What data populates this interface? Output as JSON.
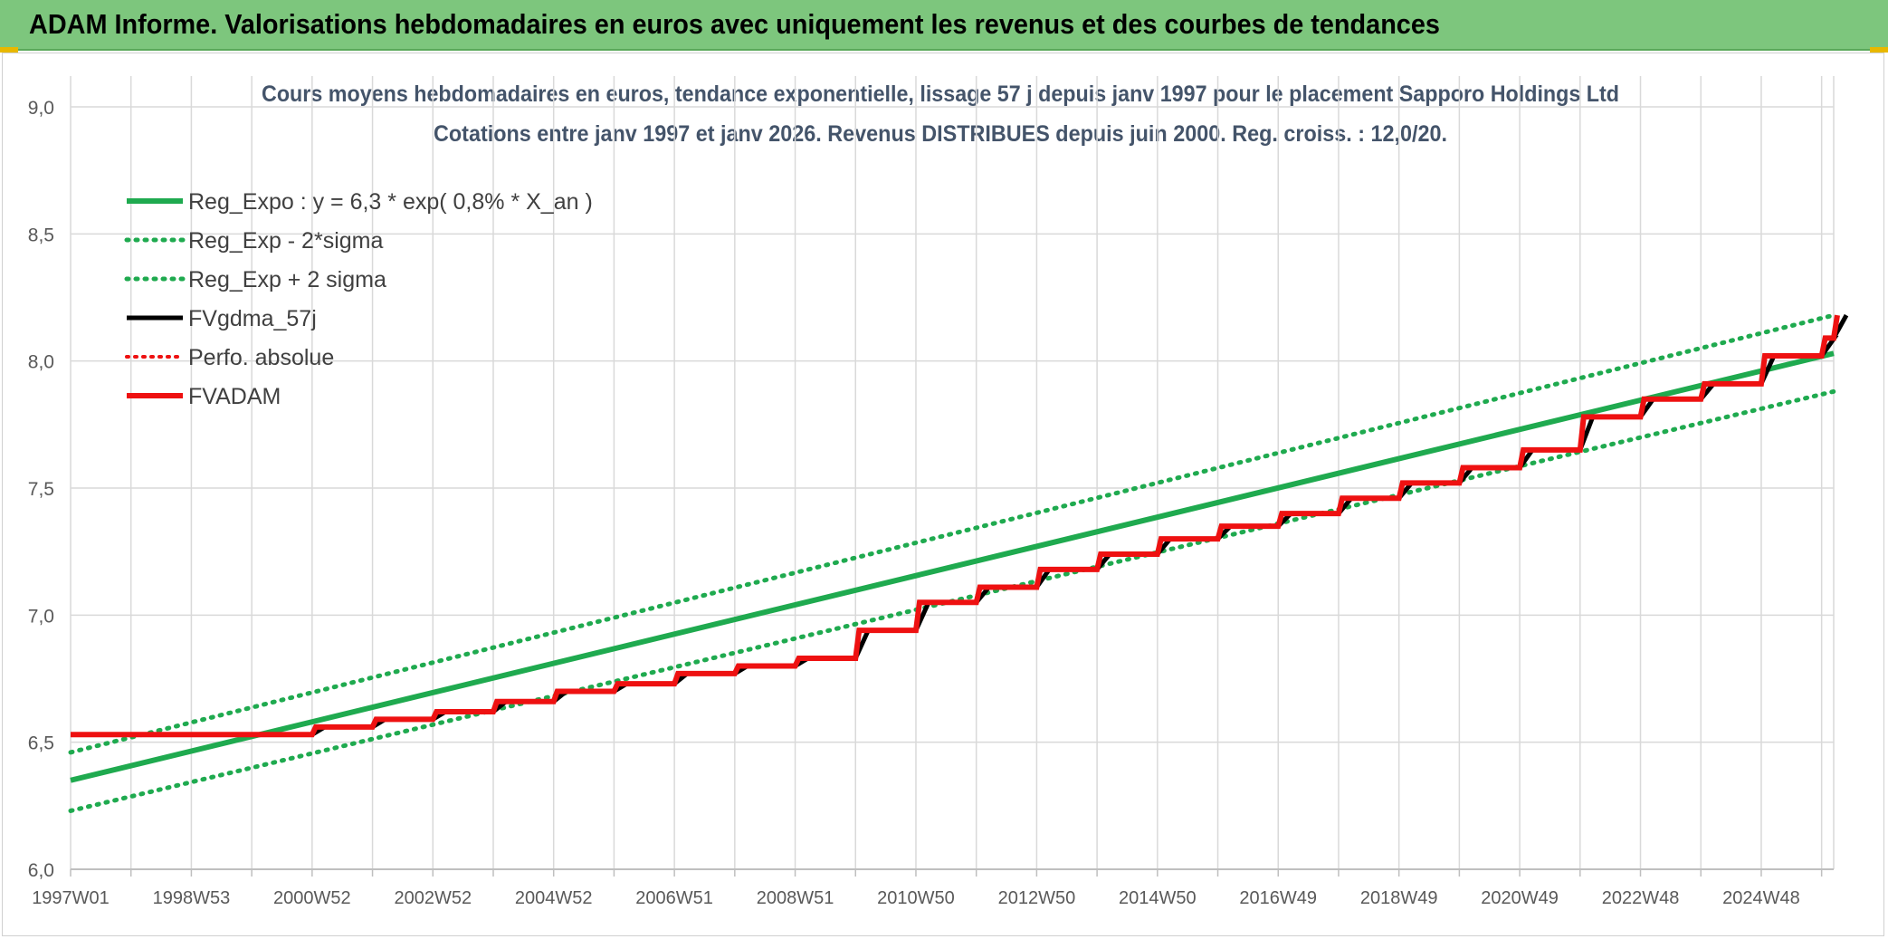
{
  "header": {
    "title": "ADAM Informe. Valorisations hebdomadaires en euros avec uniquement les revenus et des courbes de tendances"
  },
  "colors": {
    "header_bg": "#7dc67d",
    "green": "#1faa4f",
    "red": "#ee1111",
    "black": "#000000",
    "grid": "#d9d9d9"
  },
  "chart_data": {
    "type": "line",
    "title_line1": "Cours moyens hebdomadaires en euros, tendance exponentielle, lissage 57 j depuis janv 1997 pour le placement Sapporo Holdings Ltd",
    "title_line2": "Cotations entre janv 1997 et janv 2026. Revenus DISTRIBUES depuis juin 2000. Reg. croiss. : 12,0/20.",
    "xlabel": "",
    "ylabel": "",
    "ylim": [
      6.0,
      9.0
    ],
    "xlim": [
      1997.0,
      2026.2
    ],
    "y_ticks": [
      "6,0",
      "6,5",
      "7,0",
      "7,5",
      "8,0",
      "8,5",
      "9,0"
    ],
    "x_ticks": [
      {
        "label": "1997W01",
        "x": 1997.0
      },
      {
        "label": "1998W53",
        "x": 1999.0
      },
      {
        "label": "2000W52",
        "x": 2001.0
      },
      {
        "label": "2002W52",
        "x": 2003.0
      },
      {
        "label": "2004W52",
        "x": 2005.0
      },
      {
        "label": "2006W51",
        "x": 2007.0
      },
      {
        "label": "2008W51",
        "x": 2009.0
      },
      {
        "label": "2010W50",
        "x": 2011.0
      },
      {
        "label": "2012W50",
        "x": 2013.0
      },
      {
        "label": "2014W50",
        "x": 2015.0
      },
      {
        "label": "2016W49",
        "x": 2017.0
      },
      {
        "label": "2018W49",
        "x": 2019.0
      },
      {
        "label": "2020W49",
        "x": 2021.0
      },
      {
        "label": "2022W48",
        "x": 2023.0
      },
      {
        "label": "2024W48",
        "x": 2025.0
      }
    ],
    "grid": true,
    "legend_position": "top-left",
    "series": [
      {
        "name": "Reg_Expo : y = 6,3 * exp( 0,8% *  X_an )",
        "style": "solid-green",
        "x": [
          1997.0,
          2026.2
        ],
        "y": [
          6.35,
          8.03
        ]
      },
      {
        "name": "Reg_Exp - 2*sigma",
        "style": "dotted-green",
        "x": [
          1997.0,
          2026.2
        ],
        "y": [
          6.23,
          7.88
        ]
      },
      {
        "name": "Reg_Exp + 2 sigma",
        "style": "dotted-green",
        "x": [
          1997.0,
          2026.2
        ],
        "y": [
          6.46,
          8.18
        ]
      },
      {
        "name": "FVgdma_57j",
        "style": "solid-black",
        "x": [
          1997.0,
          2000.0,
          2001.0,
          2002.0,
          2003.0,
          2004.0,
          2005.0,
          2006.0,
          2007.0,
          2008.0,
          2009.0,
          2010.0,
          2011.0,
          2012.0,
          2013.0,
          2014.0,
          2015.0,
          2016.0,
          2017.0,
          2018.0,
          2019.0,
          2020.0,
          2021.0,
          2022.0,
          2023.0,
          2024.0,
          2025.0,
          2026.0,
          2026.2
        ],
        "y": [
          6.53,
          6.53,
          6.56,
          6.59,
          6.62,
          6.66,
          6.7,
          6.73,
          6.77,
          6.8,
          6.83,
          6.94,
          7.05,
          7.11,
          7.18,
          7.24,
          7.3,
          7.35,
          7.4,
          7.46,
          7.52,
          7.58,
          7.65,
          7.78,
          7.85,
          7.91,
          8.02,
          8.09,
          8.18
        ]
      },
      {
        "name": "Perfo. absolue",
        "style": "dotted-red",
        "x": [],
        "y": []
      },
      {
        "name": "FVADAM",
        "style": "solid-red-thick",
        "x": [
          1997.0,
          2000.0,
          2001.0,
          2002.0,
          2003.0,
          2004.0,
          2005.0,
          2006.0,
          2007.0,
          2008.0,
          2009.0,
          2010.0,
          2011.0,
          2012.0,
          2013.0,
          2014.0,
          2015.0,
          2016.0,
          2017.0,
          2018.0,
          2019.0,
          2020.0,
          2021.0,
          2022.0,
          2023.0,
          2024.0,
          2025.0,
          2026.0,
          2026.2
        ],
        "y": [
          6.53,
          6.53,
          6.56,
          6.59,
          6.62,
          6.66,
          6.7,
          6.73,
          6.77,
          6.8,
          6.83,
          6.94,
          7.05,
          7.11,
          7.18,
          7.24,
          7.3,
          7.35,
          7.4,
          7.46,
          7.52,
          7.58,
          7.65,
          7.78,
          7.85,
          7.91,
          8.02,
          8.09,
          8.18
        ]
      }
    ]
  }
}
